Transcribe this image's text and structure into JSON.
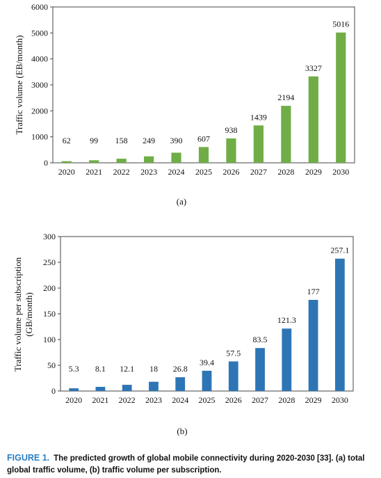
{
  "chart_data": [
    {
      "type": "bar",
      "categories": [
        "2020",
        "2021",
        "2022",
        "2023",
        "2024",
        "2025",
        "2026",
        "2027",
        "2028",
        "2029",
        "2030"
      ],
      "values": [
        62,
        99,
        158,
        249,
        390,
        607,
        938,
        1439,
        2194,
        3327,
        5016
      ],
      "value_labels": [
        "62",
        "99",
        "158",
        "249",
        "390",
        "607",
        "938",
        "1439",
        "2194",
        "3327",
        "5016"
      ],
      "ylabel": "Traffic volume (EB/month)",
      "ylim": [
        0,
        6000
      ],
      "yticks": [
        "0",
        "1000",
        "2000",
        "3000",
        "4000",
        "5000",
        "6000"
      ],
      "subcaption": "(a)",
      "color": "#70ad47"
    },
    {
      "type": "bar",
      "categories": [
        "2020",
        "2021",
        "2022",
        "2023",
        "2024",
        "2025",
        "2026",
        "2027",
        "2028",
        "2029",
        "2030"
      ],
      "values": [
        5.3,
        8.1,
        12.1,
        18,
        26.8,
        39.4,
        57.5,
        83.5,
        121.3,
        177,
        257.1
      ],
      "value_labels": [
        "5.3",
        "8.1",
        "12.1",
        "18",
        "26.8",
        "39.4",
        "57.5",
        "83.5",
        "121.3",
        "177",
        "257.1"
      ],
      "ylabel_line1": "Traffic volume per subscription",
      "ylabel_line2": "(GB/month)",
      "ylim": [
        0,
        300
      ],
      "yticks": [
        "0",
        "50",
        "100",
        "150",
        "200",
        "250",
        "300"
      ],
      "subcaption": "(b)",
      "color": "#2e75b6"
    }
  ],
  "caption": {
    "figure_label": "FIGURE 1.",
    "text": "The predicted growth of global mobile connectivity during 2020-2030 [33]. (a) total global traffic volume, (b) traffic volume per subscription."
  }
}
